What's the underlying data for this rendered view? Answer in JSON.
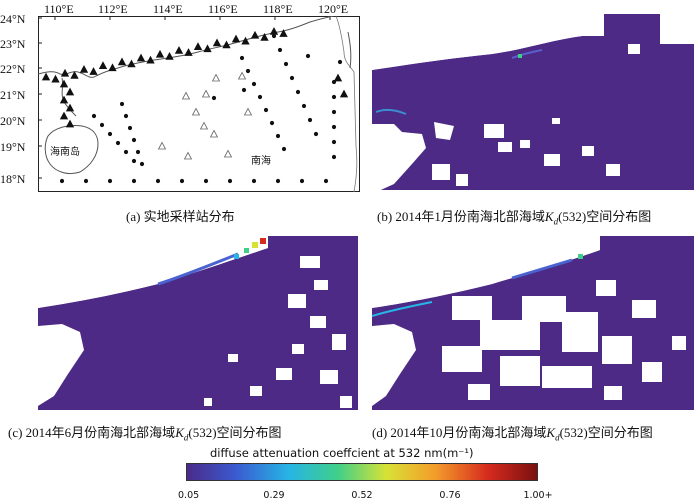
{
  "panel_a": {
    "lon_labels": [
      "110°E",
      "112°E",
      "114°E",
      "116°E",
      "118°E",
      "120°E"
    ],
    "lat_labels": [
      "24°N",
      "23°N",
      "22°N",
      "21°N",
      "20°N",
      "19°N",
      "18°N"
    ],
    "place_hainan": "海南岛",
    "place_scs": "南海",
    "caption": "(a) 实地采样站分布"
  },
  "panel_b": {
    "caption_pre": "(b) 2014年1月份南海北部海域",
    "caption_k": "K",
    "caption_d": "d",
    "caption_post": "(532)空间分布图"
  },
  "panel_c": {
    "caption_pre": "(c) 2014年6月份南海北部海域",
    "caption_k": "K",
    "caption_d": "d",
    "caption_post": "(532)空间分布图"
  },
  "panel_d": {
    "caption_pre": "(d) 2014年10月份南海北部海域",
    "caption_k": "K",
    "caption_d": "d",
    "caption_post": "(532)空间分布图"
  },
  "colorbar": {
    "title": "diffuse attenuation coeffcient at 532 nm(m⁻¹)",
    "ticks": [
      "0.05",
      "0.29",
      "0.52",
      "0.76",
      "1.00+"
    ],
    "colors": [
      "#4b2a8a",
      "#3a5bd0",
      "#27b4e6",
      "#3fcf8a",
      "#d8e236",
      "#f39c2a",
      "#d62b1e",
      "#7a1010"
    ]
  }
}
